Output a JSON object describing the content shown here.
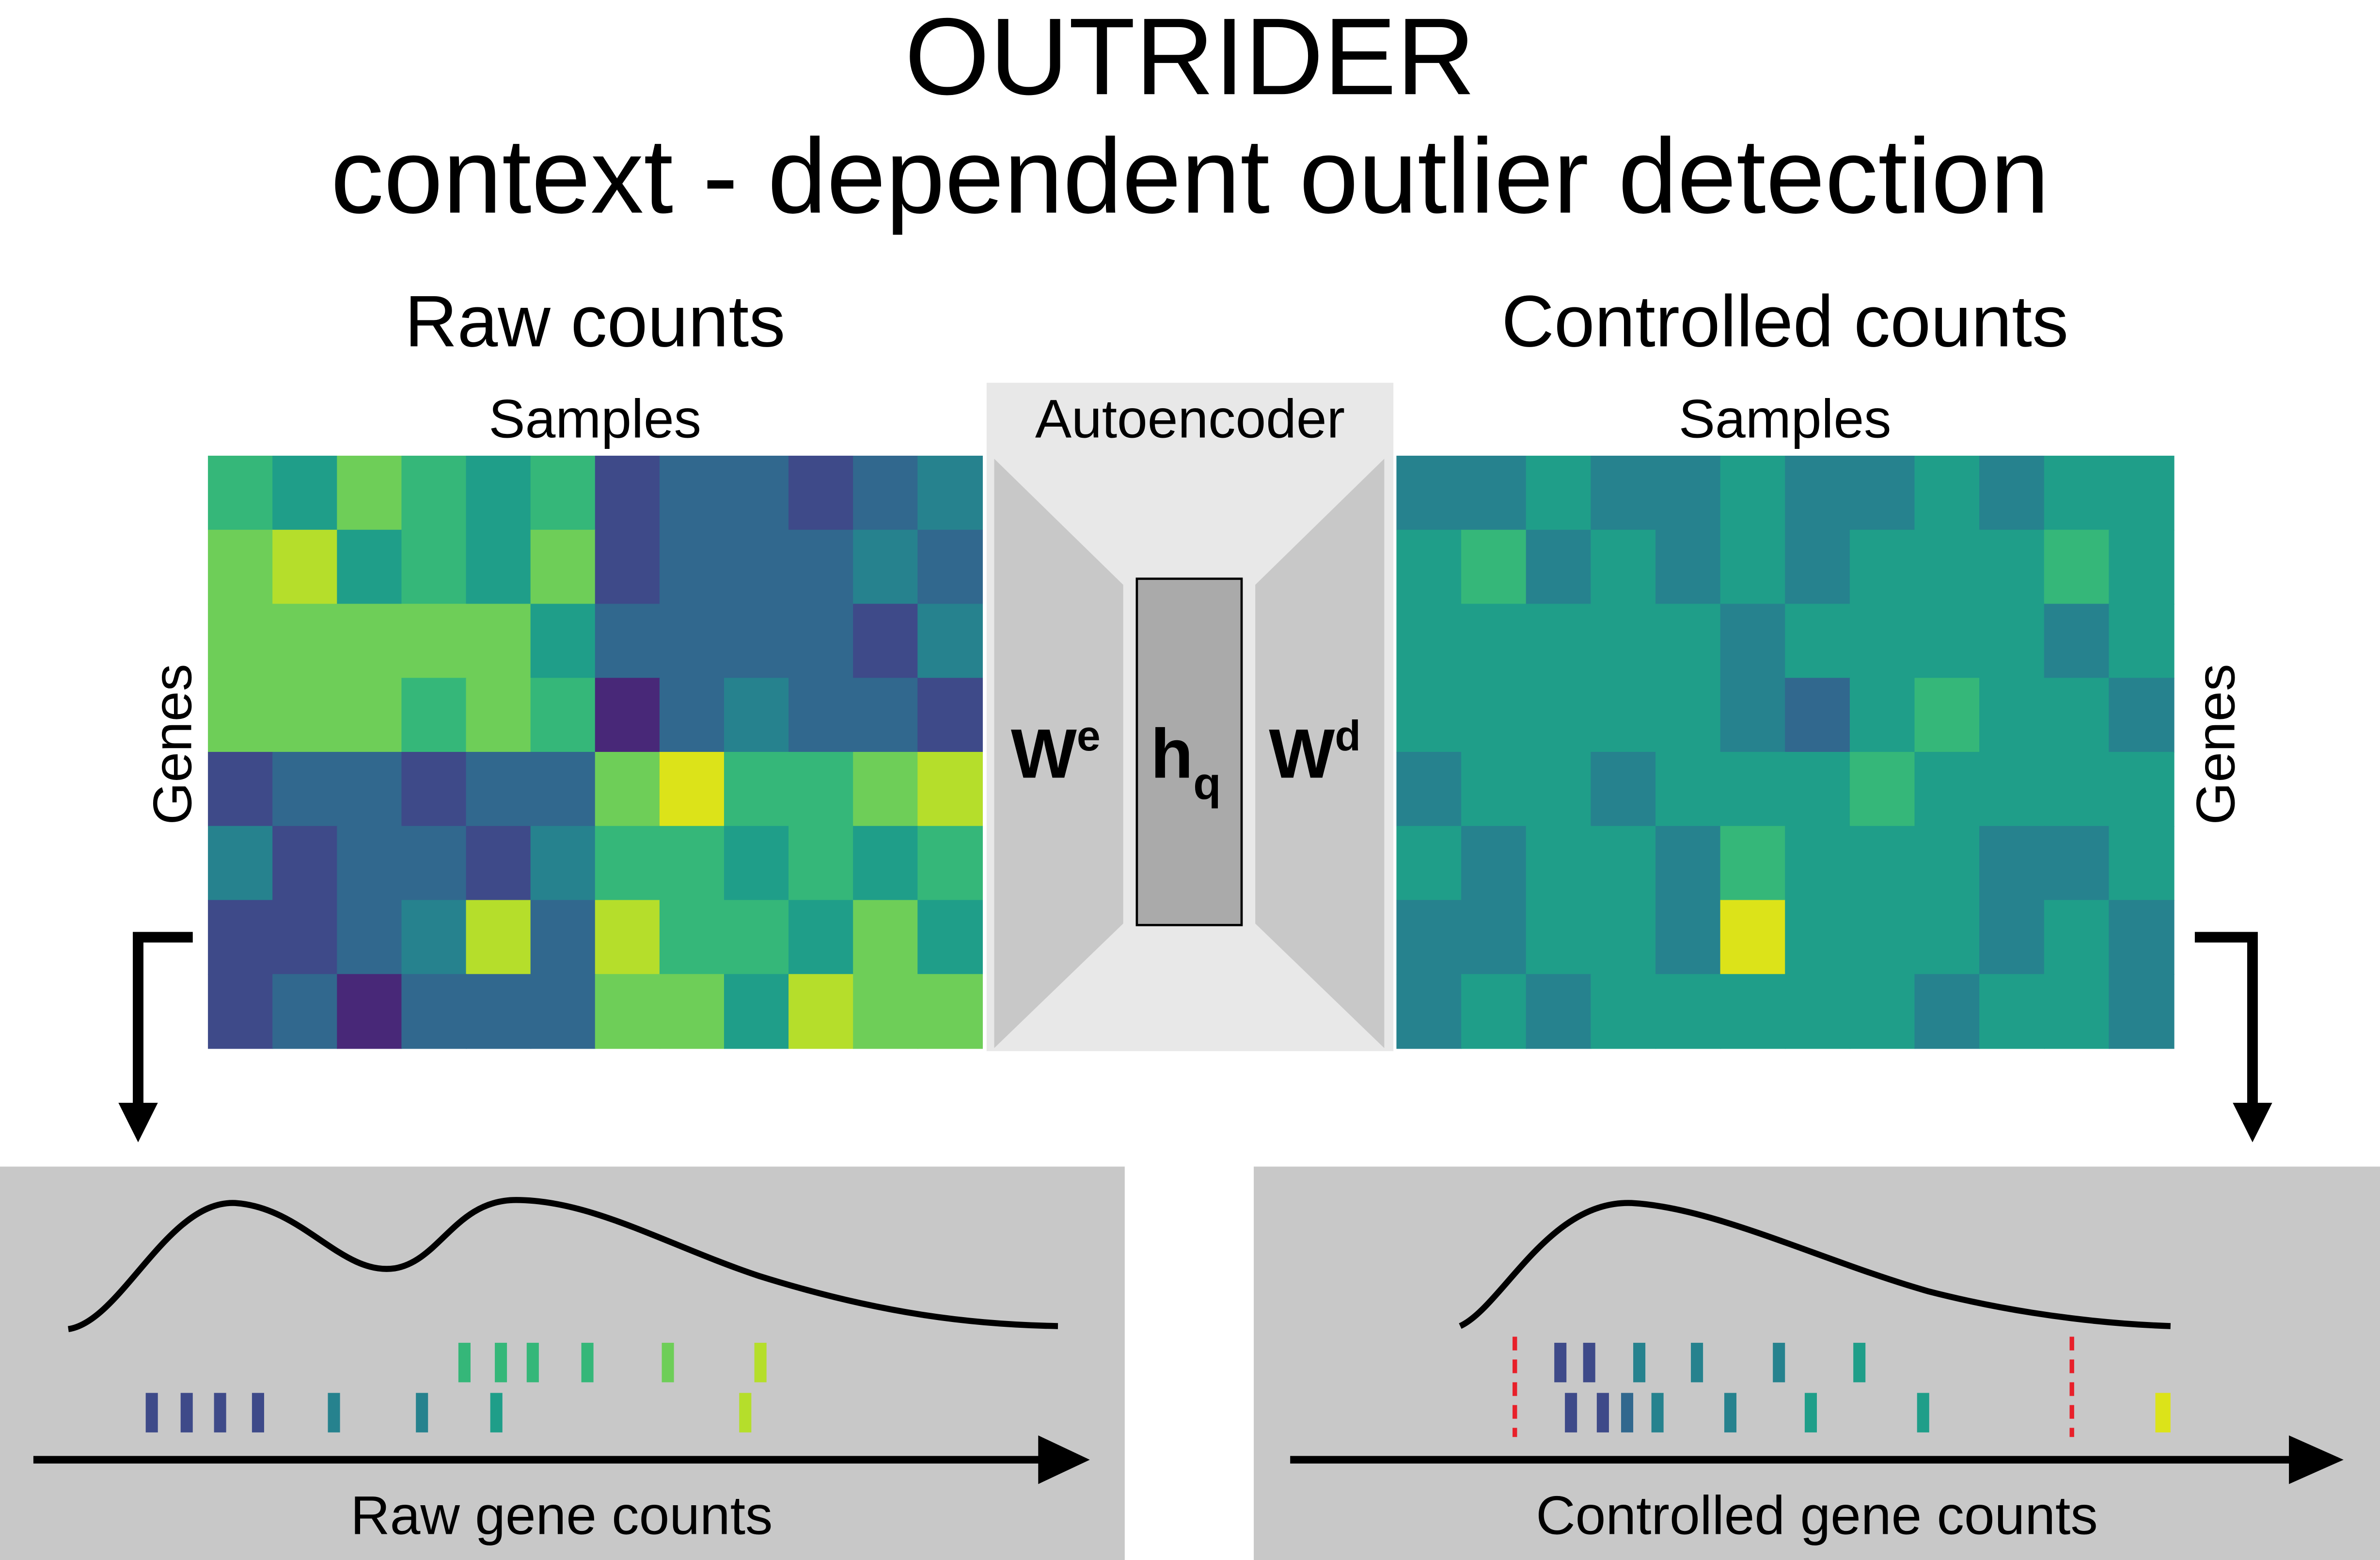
{
  "header": {
    "title": "OUTRIDER",
    "subtitle": "context - dependent outlier detection"
  },
  "panels": [
    {
      "title": "Raw counts",
      "columns_label": "Samples",
      "rows_label": "Genes",
      "distribution_label": "Raw gene counts"
    },
    {
      "title": "Controlled counts",
      "columns_label": "Samples",
      "rows_label": "Genes",
      "distribution_label": "Controlled gene counts"
    }
  ],
  "autoencoder": {
    "label": "Autoencoder",
    "encoder": {
      "symbol": "W",
      "superscript": "e"
    },
    "latent": {
      "symbol": "h",
      "subscript": "q"
    },
    "decoder": {
      "symbol": "W",
      "superscript": "d"
    }
  }
}
